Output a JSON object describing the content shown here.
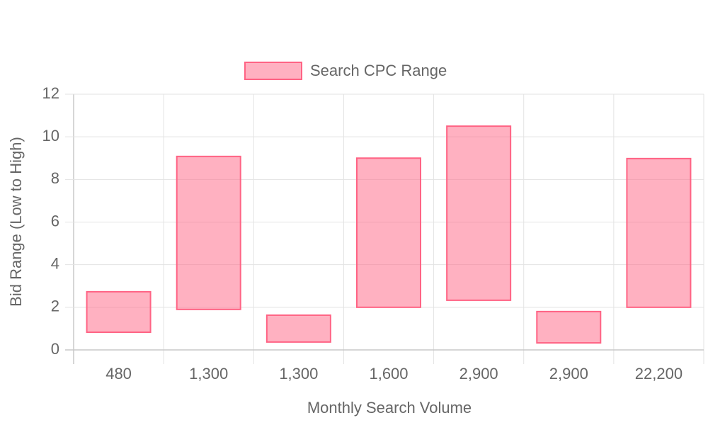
{
  "chart_data": {
    "type": "floating-bar",
    "x_label": "Monthly Search Volume",
    "y_label": "Bid Range (Low to High)",
    "categories": [
      "480",
      "1,300",
      "1,300",
      "1,600",
      "2,900",
      "2,900",
      "22,200"
    ],
    "series": [
      {
        "name": "Search CPC Range",
        "color": "#ff6384",
        "low": [
          0.83,
          1.9,
          0.37,
          2.0,
          2.33,
          0.33,
          2.0
        ],
        "high": [
          2.73,
          9.08,
          1.63,
          9.0,
          10.5,
          1.8,
          8.98
        ]
      }
    ],
    "ylim": [
      0,
      12
    ],
    "yticks": [
      0,
      2,
      4,
      6,
      8,
      10,
      12
    ],
    "grid": true,
    "legend": "top"
  }
}
